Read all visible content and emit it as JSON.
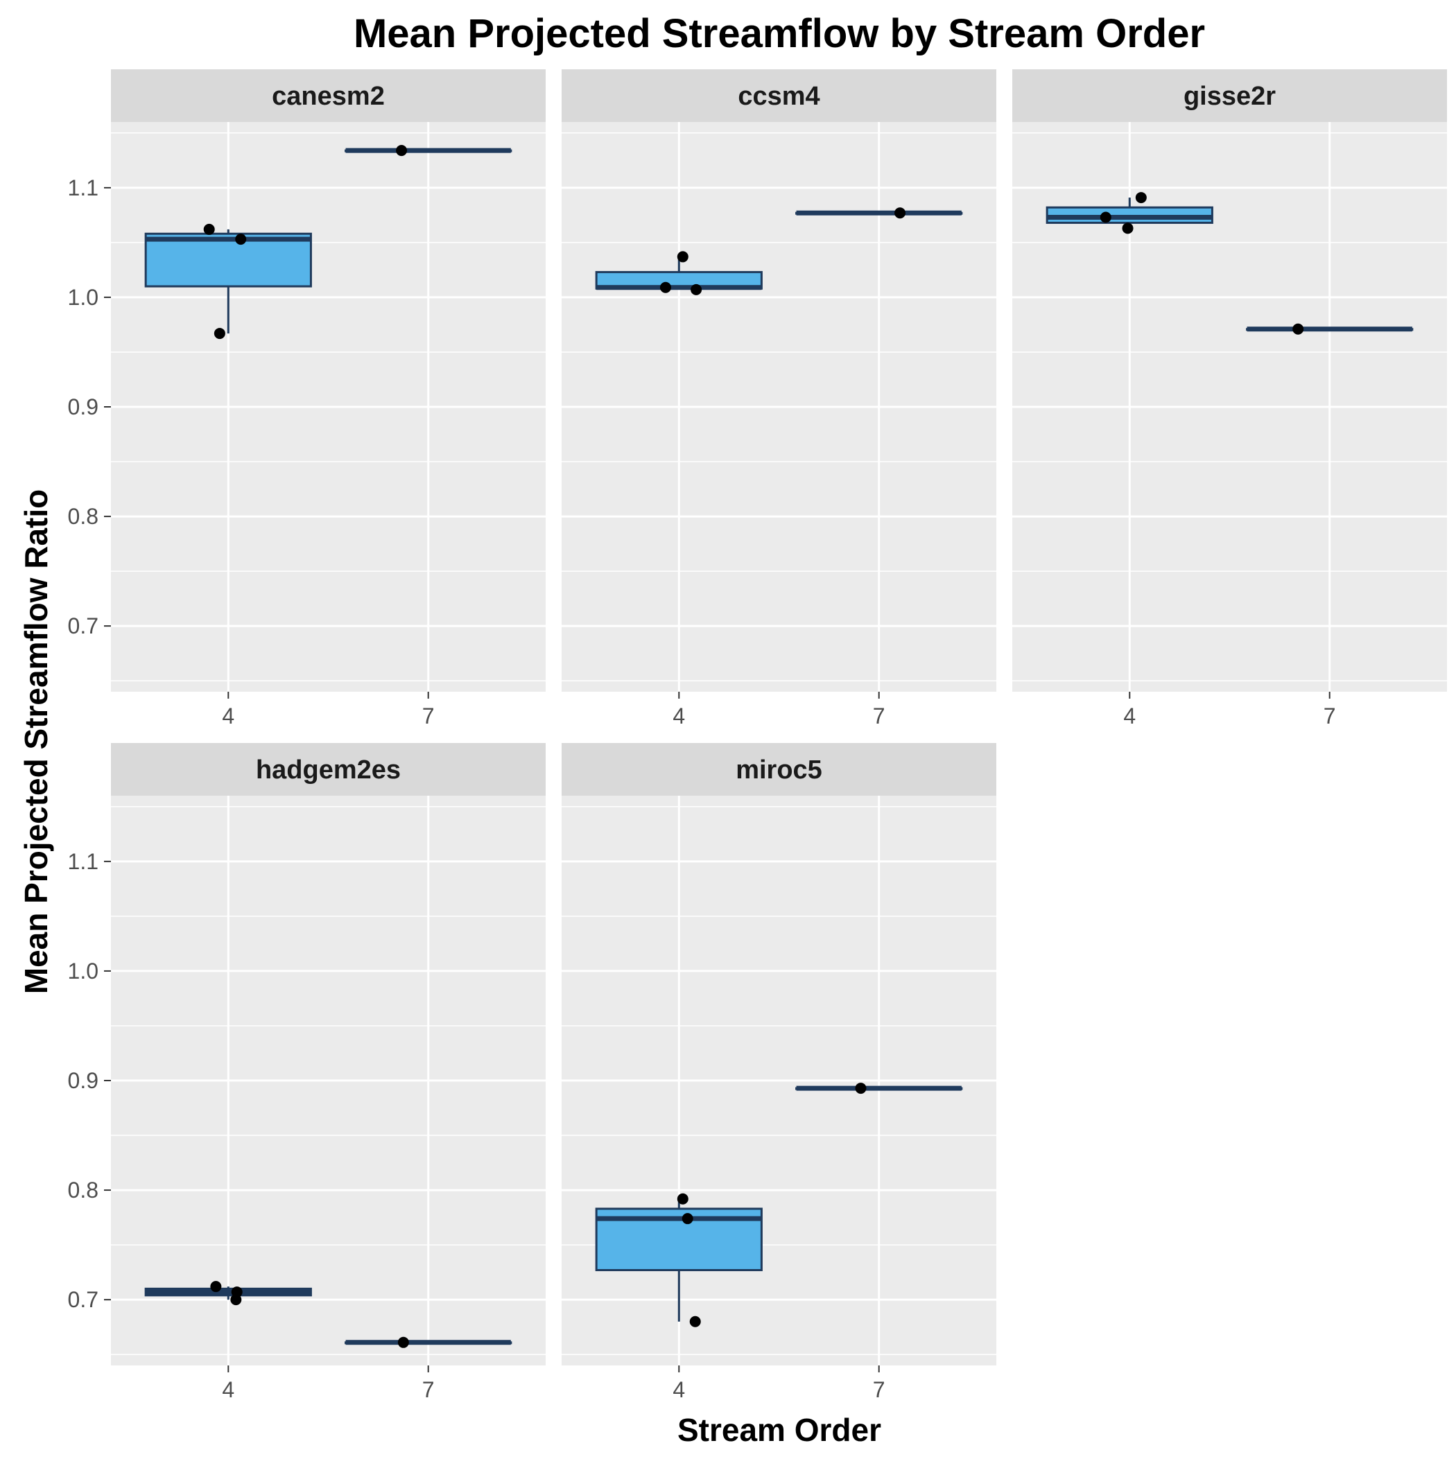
{
  "chart_data": {
    "type": "box",
    "title": "Mean Projected Streamflow by Stream Order",
    "xlabel": "Stream Order",
    "ylabel": "Mean Projected Streamflow Ratio",
    "x_categories": [
      "4",
      "7"
    ],
    "ylim": [
      0.64,
      1.16
    ],
    "yticks": [
      0.7,
      0.8,
      0.9,
      1.0,
      1.1
    ],
    "ytick_labels": [
      "0.7",
      "0.8",
      "0.9",
      "1.0",
      "1.1"
    ],
    "grid": true,
    "layout": "facet-grid 2x3",
    "colors": {
      "panel_background": "#ebebeb",
      "strip_background": "#d9d9d9",
      "gridline": "#ffffff",
      "box_fill": "#56b4e9",
      "box_outline": "#1f3a5c",
      "point": "#000000"
    },
    "facets": [
      {
        "name": "canesm2",
        "boxes": [
          {
            "x": "4",
            "min": 0.967,
            "q1": 1.01,
            "median": 1.053,
            "q3": 1.058,
            "max": 1.062
          },
          {
            "x": "7",
            "min": 1.134,
            "q1": 1.134,
            "median": 1.134,
            "q3": 1.134,
            "max": 1.134
          }
        ],
        "points": [
          {
            "x": "4",
            "y": 1.062,
            "jitter": -0.2
          },
          {
            "x": "4",
            "y": 1.053,
            "jitter": 0.13
          },
          {
            "x": "4",
            "y": 0.967,
            "jitter": -0.09
          },
          {
            "x": "7",
            "y": 1.134,
            "jitter": -0.28
          }
        ]
      },
      {
        "name": "ccsm4",
        "boxes": [
          {
            "x": "4",
            "min": 1.007,
            "q1": 1.008,
            "median": 1.009,
            "q3": 1.023,
            "max": 1.037
          },
          {
            "x": "7",
            "min": 1.077,
            "q1": 1.077,
            "median": 1.077,
            "q3": 1.077,
            "max": 1.077
          }
        ],
        "points": [
          {
            "x": "4",
            "y": 1.009,
            "jitter": -0.14
          },
          {
            "x": "4",
            "y": 1.037,
            "jitter": 0.04
          },
          {
            "x": "4",
            "y": 1.007,
            "jitter": 0.18
          },
          {
            "x": "7",
            "y": 1.077,
            "jitter": 0.22
          }
        ]
      },
      {
        "name": "gisse2r",
        "boxes": [
          {
            "x": "4",
            "min": 1.063,
            "q1": 1.068,
            "median": 1.073,
            "q3": 1.082,
            "max": 1.091
          },
          {
            "x": "7",
            "min": 0.971,
            "q1": 0.971,
            "median": 0.971,
            "q3": 0.971,
            "max": 0.971
          }
        ],
        "points": [
          {
            "x": "4",
            "y": 1.073,
            "jitter": -0.25
          },
          {
            "x": "4",
            "y": 1.063,
            "jitter": -0.02
          },
          {
            "x": "4",
            "y": 1.091,
            "jitter": 0.12
          },
          {
            "x": "7",
            "y": 0.971,
            "jitter": -0.33
          }
        ]
      },
      {
        "name": "hadgem2es",
        "boxes": [
          {
            "x": "4",
            "min": 0.7,
            "q1": 0.704,
            "median": 0.707,
            "q3": 0.71,
            "max": 0.712
          },
          {
            "x": "7",
            "min": 0.661,
            "q1": 0.661,
            "median": 0.661,
            "q3": 0.661,
            "max": 0.661
          }
        ],
        "points": [
          {
            "x": "4",
            "y": 0.712,
            "jitter": -0.13
          },
          {
            "x": "4",
            "y": 0.707,
            "jitter": 0.09
          },
          {
            "x": "4",
            "y": 0.7,
            "jitter": 0.08
          },
          {
            "x": "7",
            "y": 0.661,
            "jitter": -0.26
          }
        ]
      },
      {
        "name": "miroc5",
        "boxes": [
          {
            "x": "4",
            "min": 0.68,
            "q1": 0.727,
            "median": 0.774,
            "q3": 0.783,
            "max": 0.792
          },
          {
            "x": "7",
            "min": 0.893,
            "q1": 0.893,
            "median": 0.893,
            "q3": 0.893,
            "max": 0.893
          }
        ],
        "points": [
          {
            "x": "4",
            "y": 0.792,
            "jitter": 0.04
          },
          {
            "x": "4",
            "y": 0.774,
            "jitter": 0.09
          },
          {
            "x": "4",
            "y": 0.68,
            "jitter": 0.17
          },
          {
            "x": "7",
            "y": 0.893,
            "jitter": -0.19
          }
        ]
      }
    ]
  }
}
